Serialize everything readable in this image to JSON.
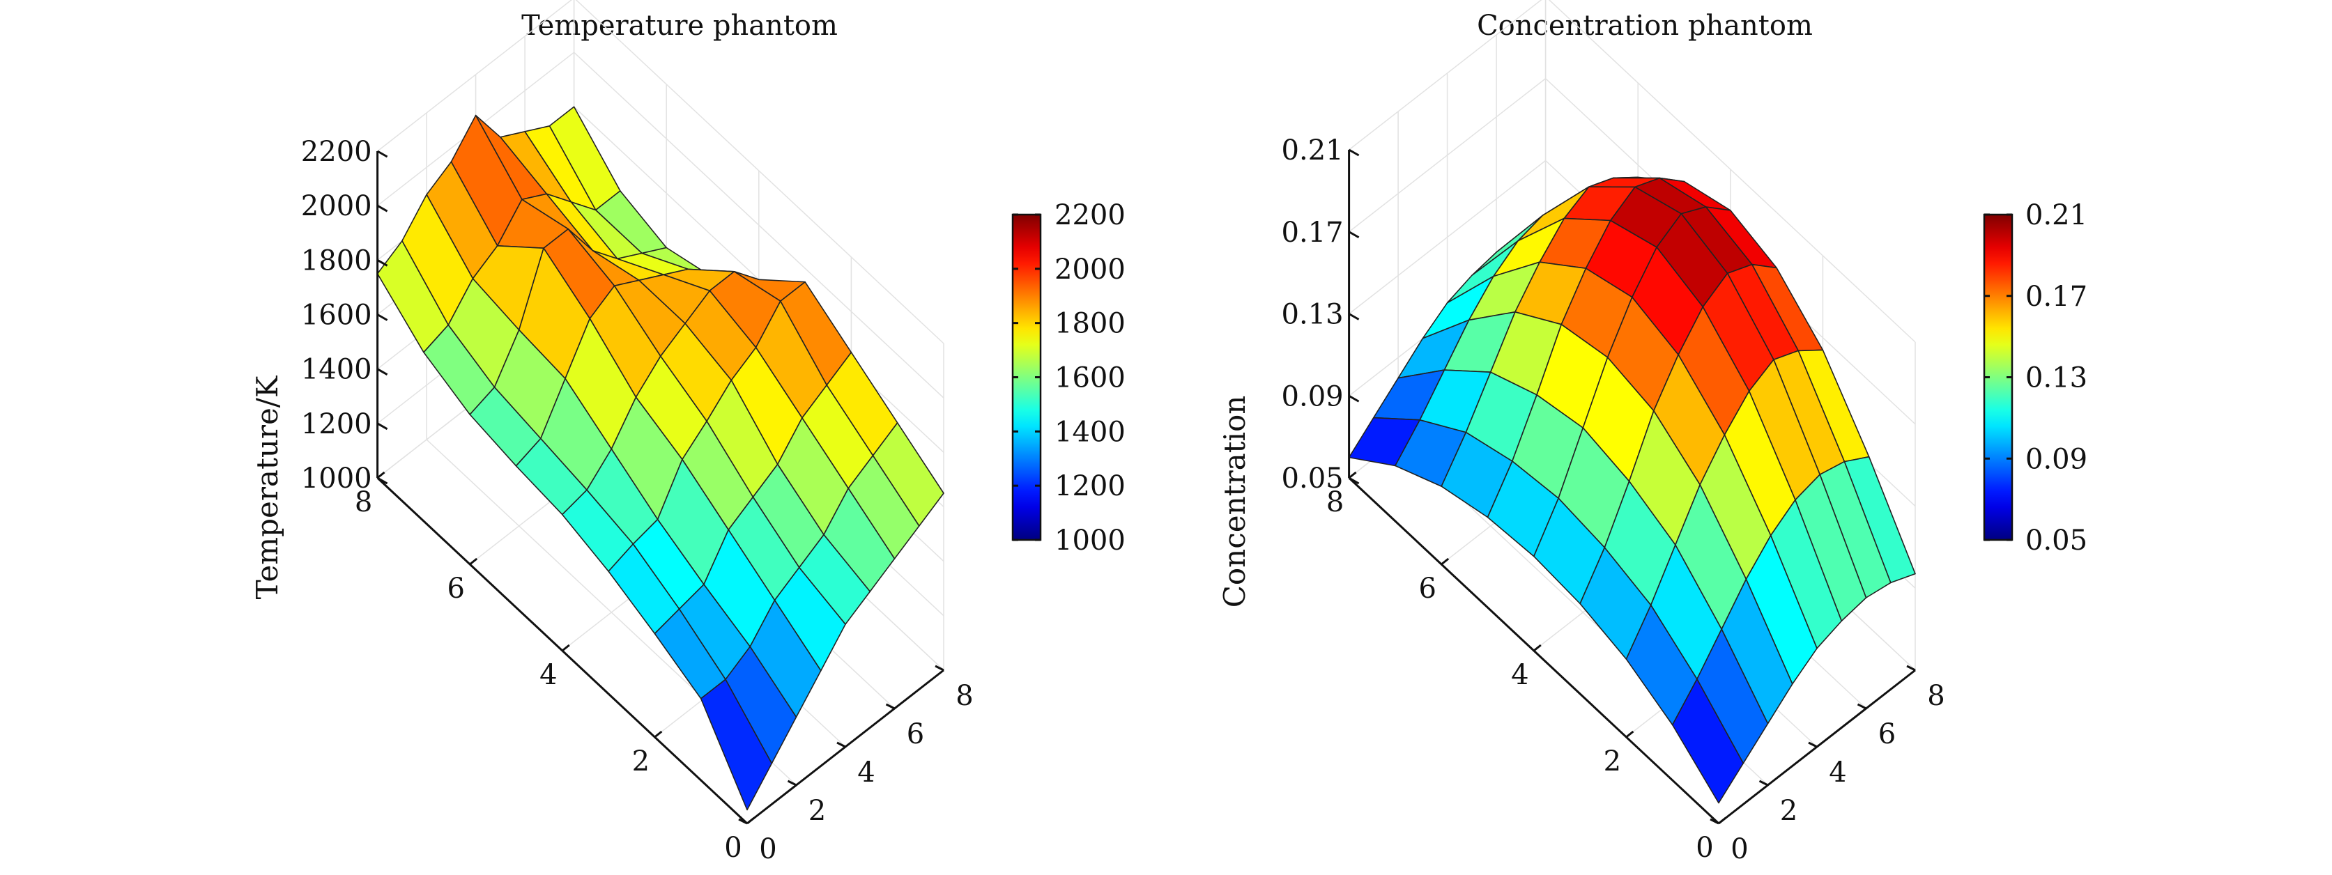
{
  "chart_data": [
    {
      "type": "surface",
      "title": "Temperature phantom",
      "zlabel": "Temperature/K",
      "xlim": [
        0,
        8
      ],
      "ylim": [
        0,
        8
      ],
      "zlim": [
        1000,
        2200
      ],
      "x_ticks": [
        "0",
        "2",
        "4",
        "6",
        "8"
      ],
      "y_ticks": [
        "0",
        "2",
        "4",
        "6",
        "8"
      ],
      "z_ticks": [
        "1000",
        "1200",
        "1400",
        "1600",
        "1800",
        "2000",
        "2200"
      ],
      "colorbar": {
        "colormap": "jet",
        "range": [
          1000,
          2200
        ],
        "ticks": [
          "1000",
          "1200",
          "1400",
          "1600",
          "1800",
          "2000",
          "2200"
        ]
      },
      "grid": true,
      "x": [
        0,
        1,
        2,
        3,
        4,
        5,
        6,
        7,
        8
      ],
      "y": [
        0,
        1,
        2,
        3,
        4,
        5,
        6,
        7,
        8
      ],
      "z": [
        [
          1050,
          1300,
          1380,
          1450,
          1500,
          1520,
          1550,
          1620,
          1750
        ],
        [
          1150,
          1300,
          1400,
          1480,
          1520,
          1550,
          1580,
          1650,
          1800
        ],
        [
          1250,
          1350,
          1420,
          1500,
          1600,
          1700,
          1720,
          1750,
          1900
        ],
        [
          1350,
          1450,
          1550,
          1650,
          1720,
          1850,
          1950,
          1800,
          1950
        ],
        [
          1450,
          1500,
          1600,
          1720,
          1800,
          1900,
          1950,
          1900,
          2050
        ],
        [
          1500,
          1550,
          1650,
          1800,
          1850,
          1850,
          1800,
          1850,
          1900
        ],
        [
          1550,
          1650,
          1750,
          1850,
          1900,
          1800,
          1700,
          1750,
          1850
        ],
        [
          1600,
          1700,
          1800,
          1950,
          1900,
          1750,
          1650,
          1650,
          1800
        ],
        [
          1650,
          1750,
          1850,
          1950,
          1800,
          1650,
          1600,
          1650,
          1800
        ]
      ]
    },
    {
      "type": "surface",
      "title": "Concentration phantom",
      "zlabel": "Concentration",
      "xlim": [
        0,
        8
      ],
      "ylim": [
        0,
        8
      ],
      "zlim": [
        0.05,
        0.21
      ],
      "x_ticks": [
        "0",
        "2",
        "4",
        "6",
        "8"
      ],
      "y_ticks": [
        "0",
        "2",
        "4",
        "6",
        "8"
      ],
      "z_ticks": [
        "0.05",
        "0.09",
        "0.13",
        "0.17",
        "0.21"
      ],
      "colorbar": {
        "colormap": "jet",
        "range": [
          0.05,
          0.21
        ],
        "ticks": [
          "0.05",
          "0.09",
          "0.13",
          "0.17",
          "0.21"
        ]
      },
      "grid": true,
      "x": [
        0,
        1,
        2,
        3,
        4,
        5,
        6,
        7,
        8
      ],
      "y": [
        0,
        1,
        2,
        3,
        4,
        5,
        6,
        7,
        8
      ],
      "z": [
        [
          0.06,
          0.077,
          0.088,
          0.094,
          0.096,
          0.094,
          0.088,
          0.077,
          0.06
        ],
        [
          0.07,
          0.09,
          0.105,
          0.112,
          0.115,
          0.112,
          0.105,
          0.09,
          0.07
        ],
        [
          0.08,
          0.105,
          0.125,
          0.135,
          0.14,
          0.135,
          0.125,
          0.105,
          0.08
        ],
        [
          0.09,
          0.12,
          0.145,
          0.16,
          0.165,
          0.16,
          0.145,
          0.12,
          0.09
        ],
        [
          0.098,
          0.132,
          0.16,
          0.178,
          0.185,
          0.178,
          0.16,
          0.132,
          0.098
        ],
        [
          0.102,
          0.14,
          0.172,
          0.192,
          0.2,
          0.192,
          0.172,
          0.14,
          0.102
        ],
        [
          0.104,
          0.143,
          0.178,
          0.199,
          0.207,
          0.199,
          0.178,
          0.143,
          0.104
        ],
        [
          0.102,
          0.14,
          0.173,
          0.194,
          0.201,
          0.194,
          0.173,
          0.14,
          0.102
        ],
        [
          0.097,
          0.133,
          0.164,
          0.183,
          0.19,
          0.183,
          0.164,
          0.133,
          0.097
        ]
      ]
    }
  ]
}
